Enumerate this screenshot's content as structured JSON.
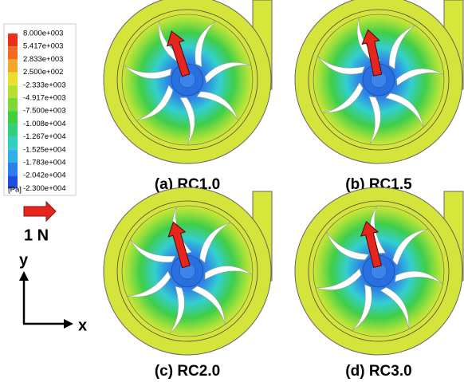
{
  "colorbar": {
    "labels": [
      "8.000e+003",
      "5.417e+003",
      "2.833e+003",
      "2.500e+002",
      "-2.333e+003",
      "-4.917e+003",
      "-7.500e+003",
      "-1.008e+004",
      "-1.267e+004",
      "-1.525e+004",
      "-1.783e+004",
      "-2.042e+004",
      "-2.300e+004"
    ],
    "unit": "[Pa]"
  },
  "force_scale": {
    "label": "1 N"
  },
  "axes": {
    "y": "y",
    "x": "x"
  },
  "panels": [
    {
      "caption": "(a) RC1.0"
    },
    {
      "caption": "(b) RC1.5"
    },
    {
      "caption": "(c) RC2.0"
    },
    {
      "caption": "(d) RC3.0"
    }
  ]
}
